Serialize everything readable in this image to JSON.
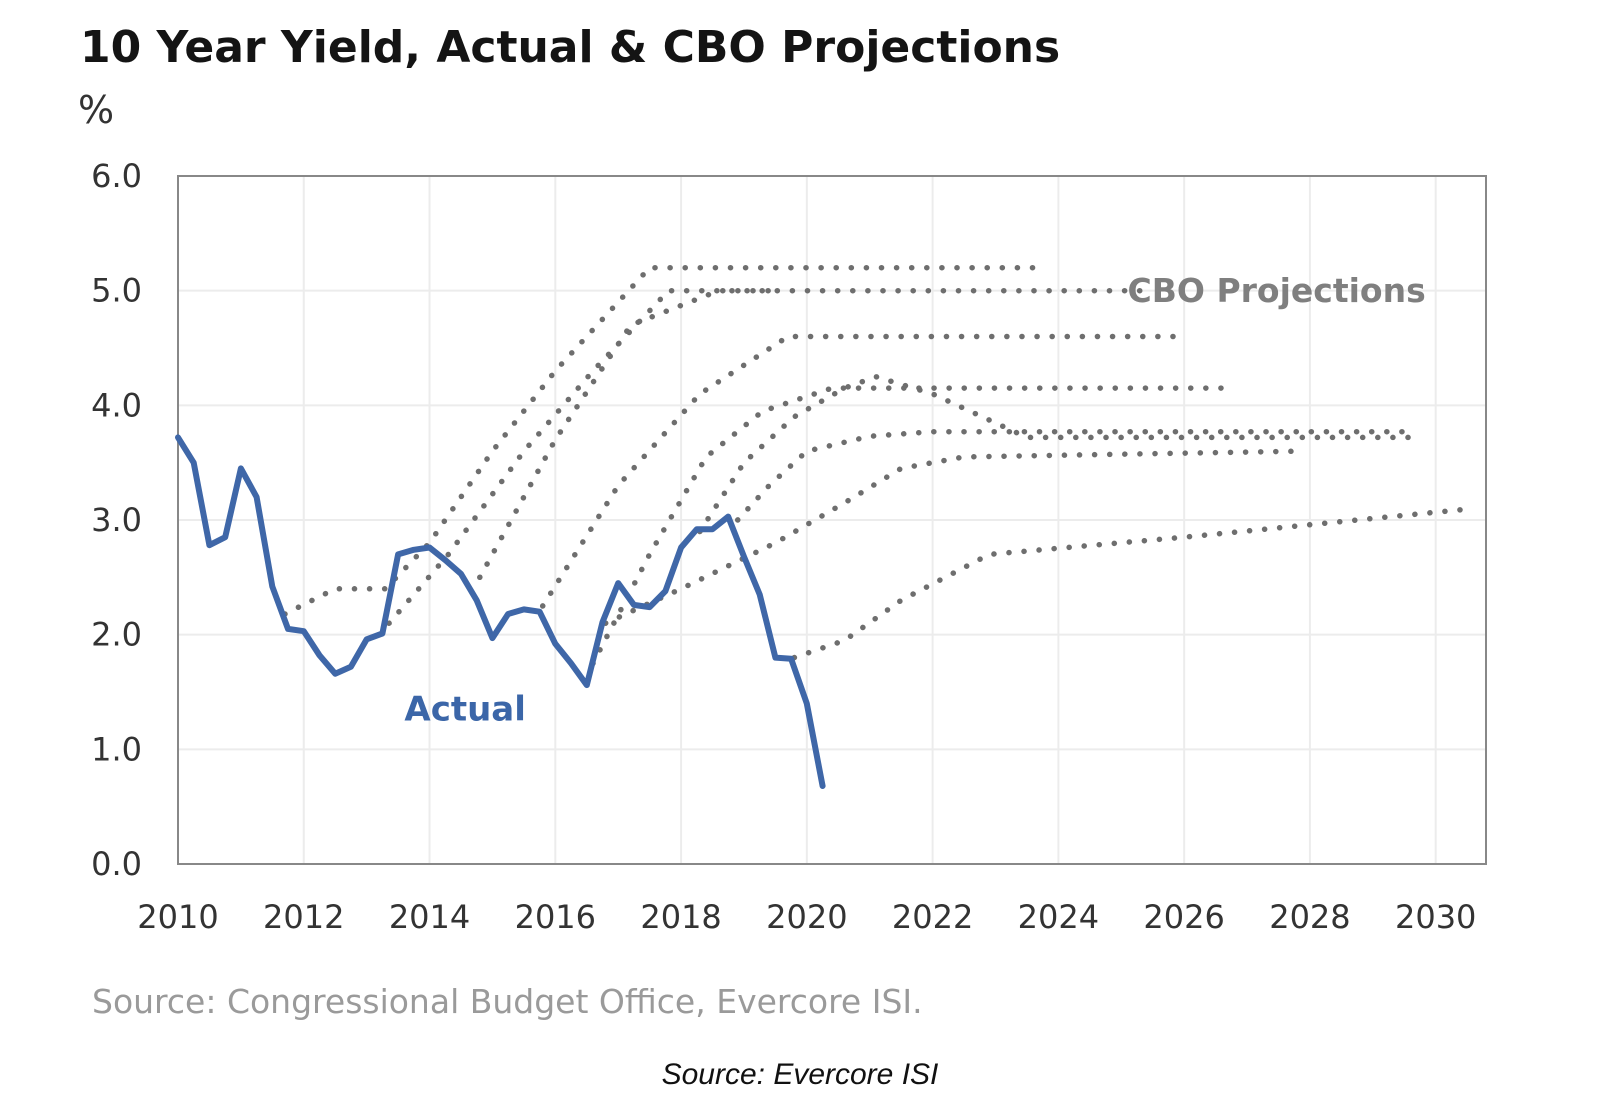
{
  "header": {
    "title": "10 Year Yield, Actual & CBO Projections",
    "unit": "%"
  },
  "footer": {
    "source_chart": "Source: Congressional Budget Office, Evercore ISI.",
    "source_image": "Source: Evercore ISI"
  },
  "colors": {
    "actual": "#3f67a8",
    "projection": "#6e6e6e",
    "grid": "#ececec",
    "axis": "#888888"
  },
  "chart_data": {
    "type": "line",
    "title": "10 Year Yield, Actual & CBO Projections",
    "ylabel": "%",
    "xlabel": "",
    "xlim": [
      2010,
      2030.8
    ],
    "ylim": [
      0,
      6
    ],
    "x_ticks": [
      "2010",
      "2012",
      "2014",
      "2016",
      "2018",
      "2020",
      "2022",
      "2024",
      "2026",
      "2028",
      "2030"
    ],
    "y_ticks": [
      "0.0",
      "1.0",
      "2.0",
      "3.0",
      "4.0",
      "5.0",
      "6.0"
    ],
    "grid": true,
    "annotations": [
      {
        "text": "Actual",
        "x": 2013.6,
        "y": 1.25
      },
      {
        "text": "CBO Projections",
        "x": 2025.1,
        "y": 4.9
      }
    ],
    "series": [
      {
        "name": "Actual",
        "style": "solid",
        "points": [
          [
            2010.0,
            3.72
          ],
          [
            2010.25,
            3.5
          ],
          [
            2010.5,
            2.78
          ],
          [
            2010.75,
            2.85
          ],
          [
            2011.0,
            3.45
          ],
          [
            2011.25,
            3.2
          ],
          [
            2011.5,
            2.42
          ],
          [
            2011.75,
            2.05
          ],
          [
            2012.0,
            2.03
          ],
          [
            2012.25,
            1.82
          ],
          [
            2012.5,
            1.66
          ],
          [
            2012.75,
            1.72
          ],
          [
            2013.0,
            1.96
          ],
          [
            2013.25,
            2.01
          ],
          [
            2013.5,
            2.7
          ],
          [
            2013.75,
            2.74
          ],
          [
            2014.0,
            2.76
          ],
          [
            2014.25,
            2.65
          ],
          [
            2014.5,
            2.53
          ],
          [
            2014.75,
            2.3
          ],
          [
            2015.0,
            1.97
          ],
          [
            2015.25,
            2.18
          ],
          [
            2015.5,
            2.22
          ],
          [
            2015.75,
            2.2
          ],
          [
            2016.0,
            1.92
          ],
          [
            2016.25,
            1.75
          ],
          [
            2016.5,
            1.56
          ],
          [
            2016.75,
            2.11
          ],
          [
            2017.0,
            2.45
          ],
          [
            2017.25,
            2.26
          ],
          [
            2017.5,
            2.24
          ],
          [
            2017.75,
            2.38
          ],
          [
            2018.0,
            2.76
          ],
          [
            2018.25,
            2.92
          ],
          [
            2018.5,
            2.92
          ],
          [
            2018.75,
            3.03
          ],
          [
            2019.0,
            2.68
          ],
          [
            2019.25,
            2.35
          ],
          [
            2019.5,
            1.8
          ],
          [
            2019.75,
            1.79
          ],
          [
            2020.0,
            1.4
          ],
          [
            2020.25,
            0.68
          ]
        ]
      },
      {
        "style": "dotted",
        "points": [
          [
            2011.7,
            2.18
          ],
          [
            2012.5,
            2.4
          ],
          [
            2013.3,
            2.4
          ],
          [
            2014.0,
            2.8
          ],
          [
            2015.0,
            3.6
          ],
          [
            2016.0,
            4.3
          ],
          [
            2017.5,
            5.2
          ],
          [
            2023.8,
            5.2
          ]
        ]
      },
      {
        "style": "dotted",
        "points": [
          [
            2013.2,
            2.0
          ],
          [
            2014.3,
            2.7
          ],
          [
            2015.5,
            3.6
          ],
          [
            2016.6,
            4.3
          ],
          [
            2017.8,
            5.0
          ],
          [
            2025.4,
            5.0
          ]
        ]
      },
      {
        "style": "dotted",
        "points": [
          [
            2014.8,
            2.5
          ],
          [
            2016.0,
            3.7
          ],
          [
            2017.2,
            4.7
          ],
          [
            2018.6,
            5.0
          ],
          [
            2019.5,
            5.0
          ]
        ]
      },
      {
        "style": "dotted",
        "points": [
          [
            2015.8,
            2.25
          ],
          [
            2017.0,
            3.3
          ],
          [
            2018.3,
            4.1
          ],
          [
            2019.7,
            4.6
          ],
          [
            2025.9,
            4.6
          ]
        ]
      },
      {
        "style": "dotted",
        "points": [
          [
            2016.6,
            1.75
          ],
          [
            2017.5,
            2.7
          ],
          [
            2018.4,
            3.55
          ],
          [
            2019.3,
            3.95
          ],
          [
            2020.4,
            4.15
          ],
          [
            2026.8,
            4.15
          ]
        ]
      },
      {
        "style": "dotted",
        "points": [
          [
            2018.3,
            2.9
          ],
          [
            2019.0,
            3.5
          ],
          [
            2019.8,
            3.9
          ],
          [
            2020.6,
            4.15
          ],
          [
            2021.1,
            4.25
          ],
          [
            2022.0,
            4.1
          ],
          [
            2023.5,
            3.72
          ],
          [
            2029.6,
            3.72
          ]
        ]
      },
      {
        "style": "dotted",
        "points": [
          [
            2018.9,
            3.0
          ],
          [
            2019.4,
            3.3
          ],
          [
            2020.0,
            3.6
          ],
          [
            2021.0,
            3.73
          ],
          [
            2022.0,
            3.77
          ],
          [
            2029.6,
            3.77
          ]
        ]
      },
      {
        "style": "dotted",
        "points": [
          [
            2016.8,
            2.1
          ],
          [
            2018.0,
            2.4
          ],
          [
            2019.5,
            2.8
          ],
          [
            2020.6,
            3.15
          ],
          [
            2021.5,
            3.45
          ],
          [
            2022.5,
            3.55
          ],
          [
            2027.8,
            3.6
          ]
        ]
      },
      {
        "style": "dotted",
        "points": [
          [
            2019.8,
            1.8
          ],
          [
            2020.6,
            1.95
          ],
          [
            2021.5,
            2.3
          ],
          [
            2022.9,
            2.7
          ],
          [
            2026.0,
            2.85
          ],
          [
            2030.6,
            3.1
          ]
        ]
      }
    ]
  }
}
